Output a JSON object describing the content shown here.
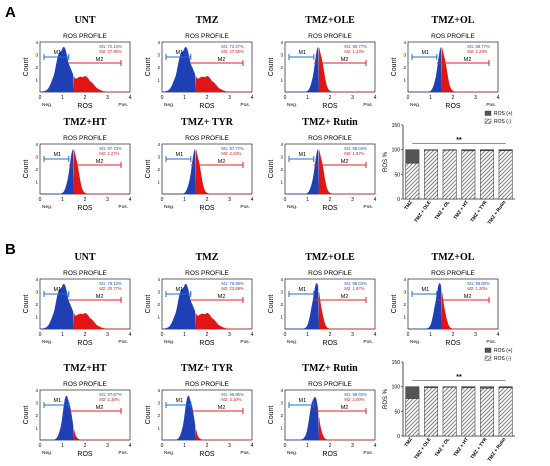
{
  "panel_labels": [
    "A",
    "B"
  ],
  "chart_data": [
    {
      "type": "histogram",
      "title": "UNT",
      "subtitle": "ROS PROFILE",
      "xlabel": "ROS",
      "ylabel": "Count",
      "x_ticks": [
        "0",
        "1",
        "2",
        "3",
        "4"
      ],
      "y_ticks": [
        "0",
        "1",
        "2",
        "3",
        "4"
      ],
      "x_ends": [
        "Neg.",
        "Pos."
      ],
      "gates": [
        "M1",
        "M2"
      ],
      "gate_text": [
        "M1: 72.13%",
        "M2: 27.80%"
      ],
      "values": {
        "M1": 72.13,
        "M2": 27.8
      },
      "peak": 1.0
    },
    {
      "type": "histogram",
      "title": "TMZ",
      "subtitle": "ROS PROFILE",
      "xlabel": "ROS",
      "ylabel": "Count",
      "x_ticks": [
        "0",
        "1",
        "2",
        "3",
        "4"
      ],
      "y_ticks": [
        "0",
        "1",
        "2",
        "3",
        "4"
      ],
      "x_ends": [
        "Neg.",
        "Pos."
      ],
      "gates": [
        "M1",
        "M2"
      ],
      "gate_text": [
        "M1: 72.47%",
        "M2: 27.50%"
      ],
      "values": {
        "M1": 72.47,
        "M2": 27.5
      },
      "peak": 1.0
    },
    {
      "type": "histogram",
      "title": "TMZ+OLE",
      "subtitle": "ROS PROFILE",
      "xlabel": "ROS",
      "ylabel": "Count",
      "x_ticks": [
        "0",
        "1",
        "2",
        "3",
        "4"
      ],
      "y_ticks": [
        "0",
        "1",
        "2",
        "3",
        "4"
      ],
      "x_ends": [
        "Neg.",
        "Pos."
      ],
      "gates": [
        "M1",
        "M2"
      ],
      "gate_text": [
        "M1: 98.77%",
        "M2: 1.23%"
      ],
      "values": {
        "M1": 98.77,
        "M2": 1.23
      },
      "peak": 1.5
    },
    {
      "type": "histogram",
      "title": "TMZ+OL",
      "subtitle": "ROS PROFILE",
      "xlabel": "ROS",
      "ylabel": "Count",
      "x_ticks": [
        "0",
        "1",
        "2",
        "3",
        "4"
      ],
      "y_ticks": [
        "0",
        "1",
        "2",
        "3",
        "4"
      ],
      "x_ends": [
        "Neg.",
        "Pos."
      ],
      "gates": [
        "M1",
        "M2"
      ],
      "gate_text": [
        "M1: 98.77%",
        "M2: 1.23%"
      ],
      "values": {
        "M1": 98.77,
        "M2": 1.23
      },
      "peak": 1.5
    },
    {
      "type": "histogram",
      "title": "TMZ+HT",
      "subtitle": "ROS PROFILE",
      "xlabel": "ROS",
      "ylabel": "Count",
      "x_ticks": [
        "0",
        "1",
        "2",
        "3",
        "4"
      ],
      "y_ticks": [
        "0",
        "1",
        "2",
        "3",
        "4"
      ],
      "x_ends": [
        "Neg.",
        "Pos."
      ],
      "gates": [
        "M1",
        "M2"
      ],
      "gate_text": [
        "M1: 97.73%",
        "M2: 2.27%"
      ],
      "values": {
        "M1": 97.73,
        "M2": 2.27
      },
      "peak": 1.5
    },
    {
      "type": "histogram",
      "title": "TMZ+ TYR",
      "subtitle": "ROS PROFILE",
      "xlabel": "ROS",
      "ylabel": "Count",
      "x_ticks": [
        "0",
        "1",
        "2",
        "3",
        "4"
      ],
      "y_ticks": [
        "0",
        "1",
        "2",
        "3",
        "4"
      ],
      "x_ends": [
        "Neg.",
        "Pos."
      ],
      "gates": [
        "M1",
        "M2"
      ],
      "gate_text": [
        "M1: 97.77%",
        "M2: 2.23%"
      ],
      "values": {
        "M1": 97.77,
        "M2": 2.23
      },
      "peak": 1.5
    },
    {
      "type": "histogram",
      "title": "TMZ+ Rutin",
      "subtitle": "ROS PROFILE",
      "xlabel": "ROS",
      "ylabel": "Count",
      "x_ticks": [
        "0",
        "1",
        "2",
        "3",
        "4"
      ],
      "y_ticks": [
        "0",
        "1",
        "2",
        "3",
        "4"
      ],
      "x_ends": [
        "Neg.",
        "Pos."
      ],
      "gates": [
        "M1",
        "M2"
      ],
      "gate_text": [
        "M1: 98.03%",
        "M2: 1.97%"
      ],
      "values": {
        "M1": 98.03,
        "M2": 1.97
      },
      "peak": 1.5
    },
    {
      "type": "bar",
      "stacked": true,
      "categories": [
        "TMZ",
        "TMZ + OLE",
        "TMZ + OL",
        "TMZ + HT",
        "TMZ + TYR",
        "TMZ + Rutin"
      ],
      "series": [
        {
          "name": "ROS (-)",
          "values": [
            72.5,
            98.8,
            98.8,
            97.7,
            97.8,
            98.0
          ]
        },
        {
          "name": "ROS (+)",
          "values": [
            27.5,
            1.2,
            1.2,
            2.3,
            2.2,
            2.0
          ]
        }
      ],
      "ylabel": "ROS %",
      "ylim": [
        0,
        150
      ],
      "y_ticks": [
        "0",
        "50",
        "100",
        "150"
      ],
      "annotation": "**",
      "legend": "top-right"
    },
    {
      "type": "histogram",
      "title": "UNT",
      "subtitle": "ROS PROFILE",
      "xlabel": "ROS",
      "ylabel": "Count",
      "x_ticks": [
        "0",
        "1",
        "2",
        "3",
        "4"
      ],
      "y_ticks": [
        "0",
        "1",
        "2",
        "3",
        "4"
      ],
      "x_ends": [
        "Neg.",
        "Pos."
      ],
      "gates": [
        "M1",
        "M2"
      ],
      "gate_text": [
        "M1: 79.10%",
        "M2: 20.77%"
      ],
      "values": {
        "M1": 79.1,
        "M2": 20.77
      },
      "peak": 1.0
    },
    {
      "type": "histogram",
      "title": "TMZ",
      "subtitle": "ROS PROFILE",
      "xlabel": "ROS",
      "ylabel": "Count",
      "x_ticks": [
        "0",
        "1",
        "2",
        "3",
        "4"
      ],
      "y_ticks": [
        "0",
        "1",
        "2",
        "3",
        "4"
      ],
      "x_ends": [
        "Neg.",
        "Pos."
      ],
      "gates": [
        "M1",
        "M2"
      ],
      "gate_text": [
        "M1: 75.99%",
        "M2: 23.69%"
      ],
      "values": {
        "M1": 75.99,
        "M2": 23.69
      },
      "peak": 1.0
    },
    {
      "type": "histogram",
      "title": "TMZ+OLE",
      "subtitle": "ROS PROFILE",
      "xlabel": "ROS",
      "ylabel": "Count",
      "x_ticks": [
        "0",
        "1",
        "2",
        "3",
        "4"
      ],
      "y_ticks": [
        "0",
        "1",
        "2",
        "3",
        "4"
      ],
      "x_ends": [
        "Neg.",
        "Pos."
      ],
      "gates": [
        "M1",
        "M2"
      ],
      "gate_text": [
        "M1: 98.03%",
        "M2: 1.97%"
      ],
      "values": {
        "M1": 98.03,
        "M2": 1.97
      },
      "peak": 1.4
    },
    {
      "type": "histogram",
      "title": "TMZ+OL",
      "subtitle": "ROS PROFILE",
      "xlabel": "ROS",
      "ylabel": "Count",
      "x_ticks": [
        "0",
        "1",
        "2",
        "3",
        "4"
      ],
      "y_ticks": [
        "0",
        "1",
        "2",
        "3",
        "4"
      ],
      "x_ends": [
        "Neg.",
        "Pos."
      ],
      "gates": [
        "M1",
        "M2"
      ],
      "gate_text": [
        "M1: 98.80%",
        "M2: 1.20%"
      ],
      "values": {
        "M1": 98.8,
        "M2": 1.2
      },
      "peak": 1.4
    },
    {
      "type": "histogram",
      "title": "TMZ+HT",
      "subtitle": "ROS PROFILE",
      "xlabel": "ROS",
      "ylabel": "Count",
      "x_ticks": [
        "0",
        "1",
        "2",
        "3",
        "4"
      ],
      "y_ticks": [
        "0",
        "1",
        "2",
        "3",
        "4"
      ],
      "x_ends": [
        "Neg.",
        "Pos."
      ],
      "gates": [
        "M1",
        "M2"
      ],
      "gate_text": [
        "M1: 97.67%",
        "M2: 2.30%"
      ],
      "values": {
        "M1": 97.67,
        "M2": 2.3
      },
      "peak": 1.2
    },
    {
      "type": "histogram",
      "title": "TMZ+ TYR",
      "subtitle": "ROS PROFILE",
      "xlabel": "ROS",
      "ylabel": "Count",
      "x_ticks": [
        "0",
        "1",
        "2",
        "3",
        "4"
      ],
      "y_ticks": [
        "0",
        "1",
        "2",
        "3",
        "4"
      ],
      "x_ends": [
        "Neg.",
        "Pos."
      ],
      "gates": [
        "M1",
        "M2"
      ],
      "gate_text": [
        "M1: 96.80%",
        "M2: 3.10%"
      ],
      "values": {
        "M1": 96.8,
        "M2": 3.1
      },
      "peak": 1.2
    },
    {
      "type": "histogram",
      "title": "TMZ+ Rutin",
      "subtitle": "ROS PROFILE",
      "xlabel": "ROS",
      "ylabel": "Count",
      "x_ticks": [
        "0",
        "1",
        "2",
        "3",
        "4"
      ],
      "y_ticks": [
        "0",
        "1",
        "2",
        "3",
        "4"
      ],
      "x_ends": [
        "Neg.",
        "Pos."
      ],
      "gates": [
        "M1",
        "M2"
      ],
      "gate_text": [
        "M1: 98.03%",
        "M2: 2.00%"
      ],
      "values": {
        "M1": 98.03,
        "M2": 2.0
      },
      "peak": 1.3
    },
    {
      "type": "bar",
      "stacked": true,
      "categories": [
        "TMZ",
        "TMZ + OLE",
        "TMZ + OL",
        "TMZ + HT",
        "TMZ + TYR",
        "TMZ + Rutin"
      ],
      "series": [
        {
          "name": "ROS (+)",
          "values": [
            24,
            2,
            1.2,
            2.3,
            3.1,
            2.0
          ]
        },
        {
          "name": "ROS (-)",
          "values": [
            76,
            98,
            98.8,
            97.7,
            96.9,
            98.0
          ]
        }
      ],
      "ylabel": "ROS %",
      "ylim": [
        0,
        150
      ],
      "y_ticks": [
        "0",
        "50",
        "100",
        "150"
      ],
      "annotation": "**",
      "legend": "top-right"
    }
  ],
  "colors": {
    "blue": "#1f3fb5",
    "red": "#e01515",
    "gate_blue": "#1f6fd0",
    "gate_red": "#e02020",
    "stat_blue": "#1a55c8",
    "stat_red": "#d01a1a",
    "bar_dark": "#555555",
    "bar_hatch": "#9a9a9a"
  }
}
